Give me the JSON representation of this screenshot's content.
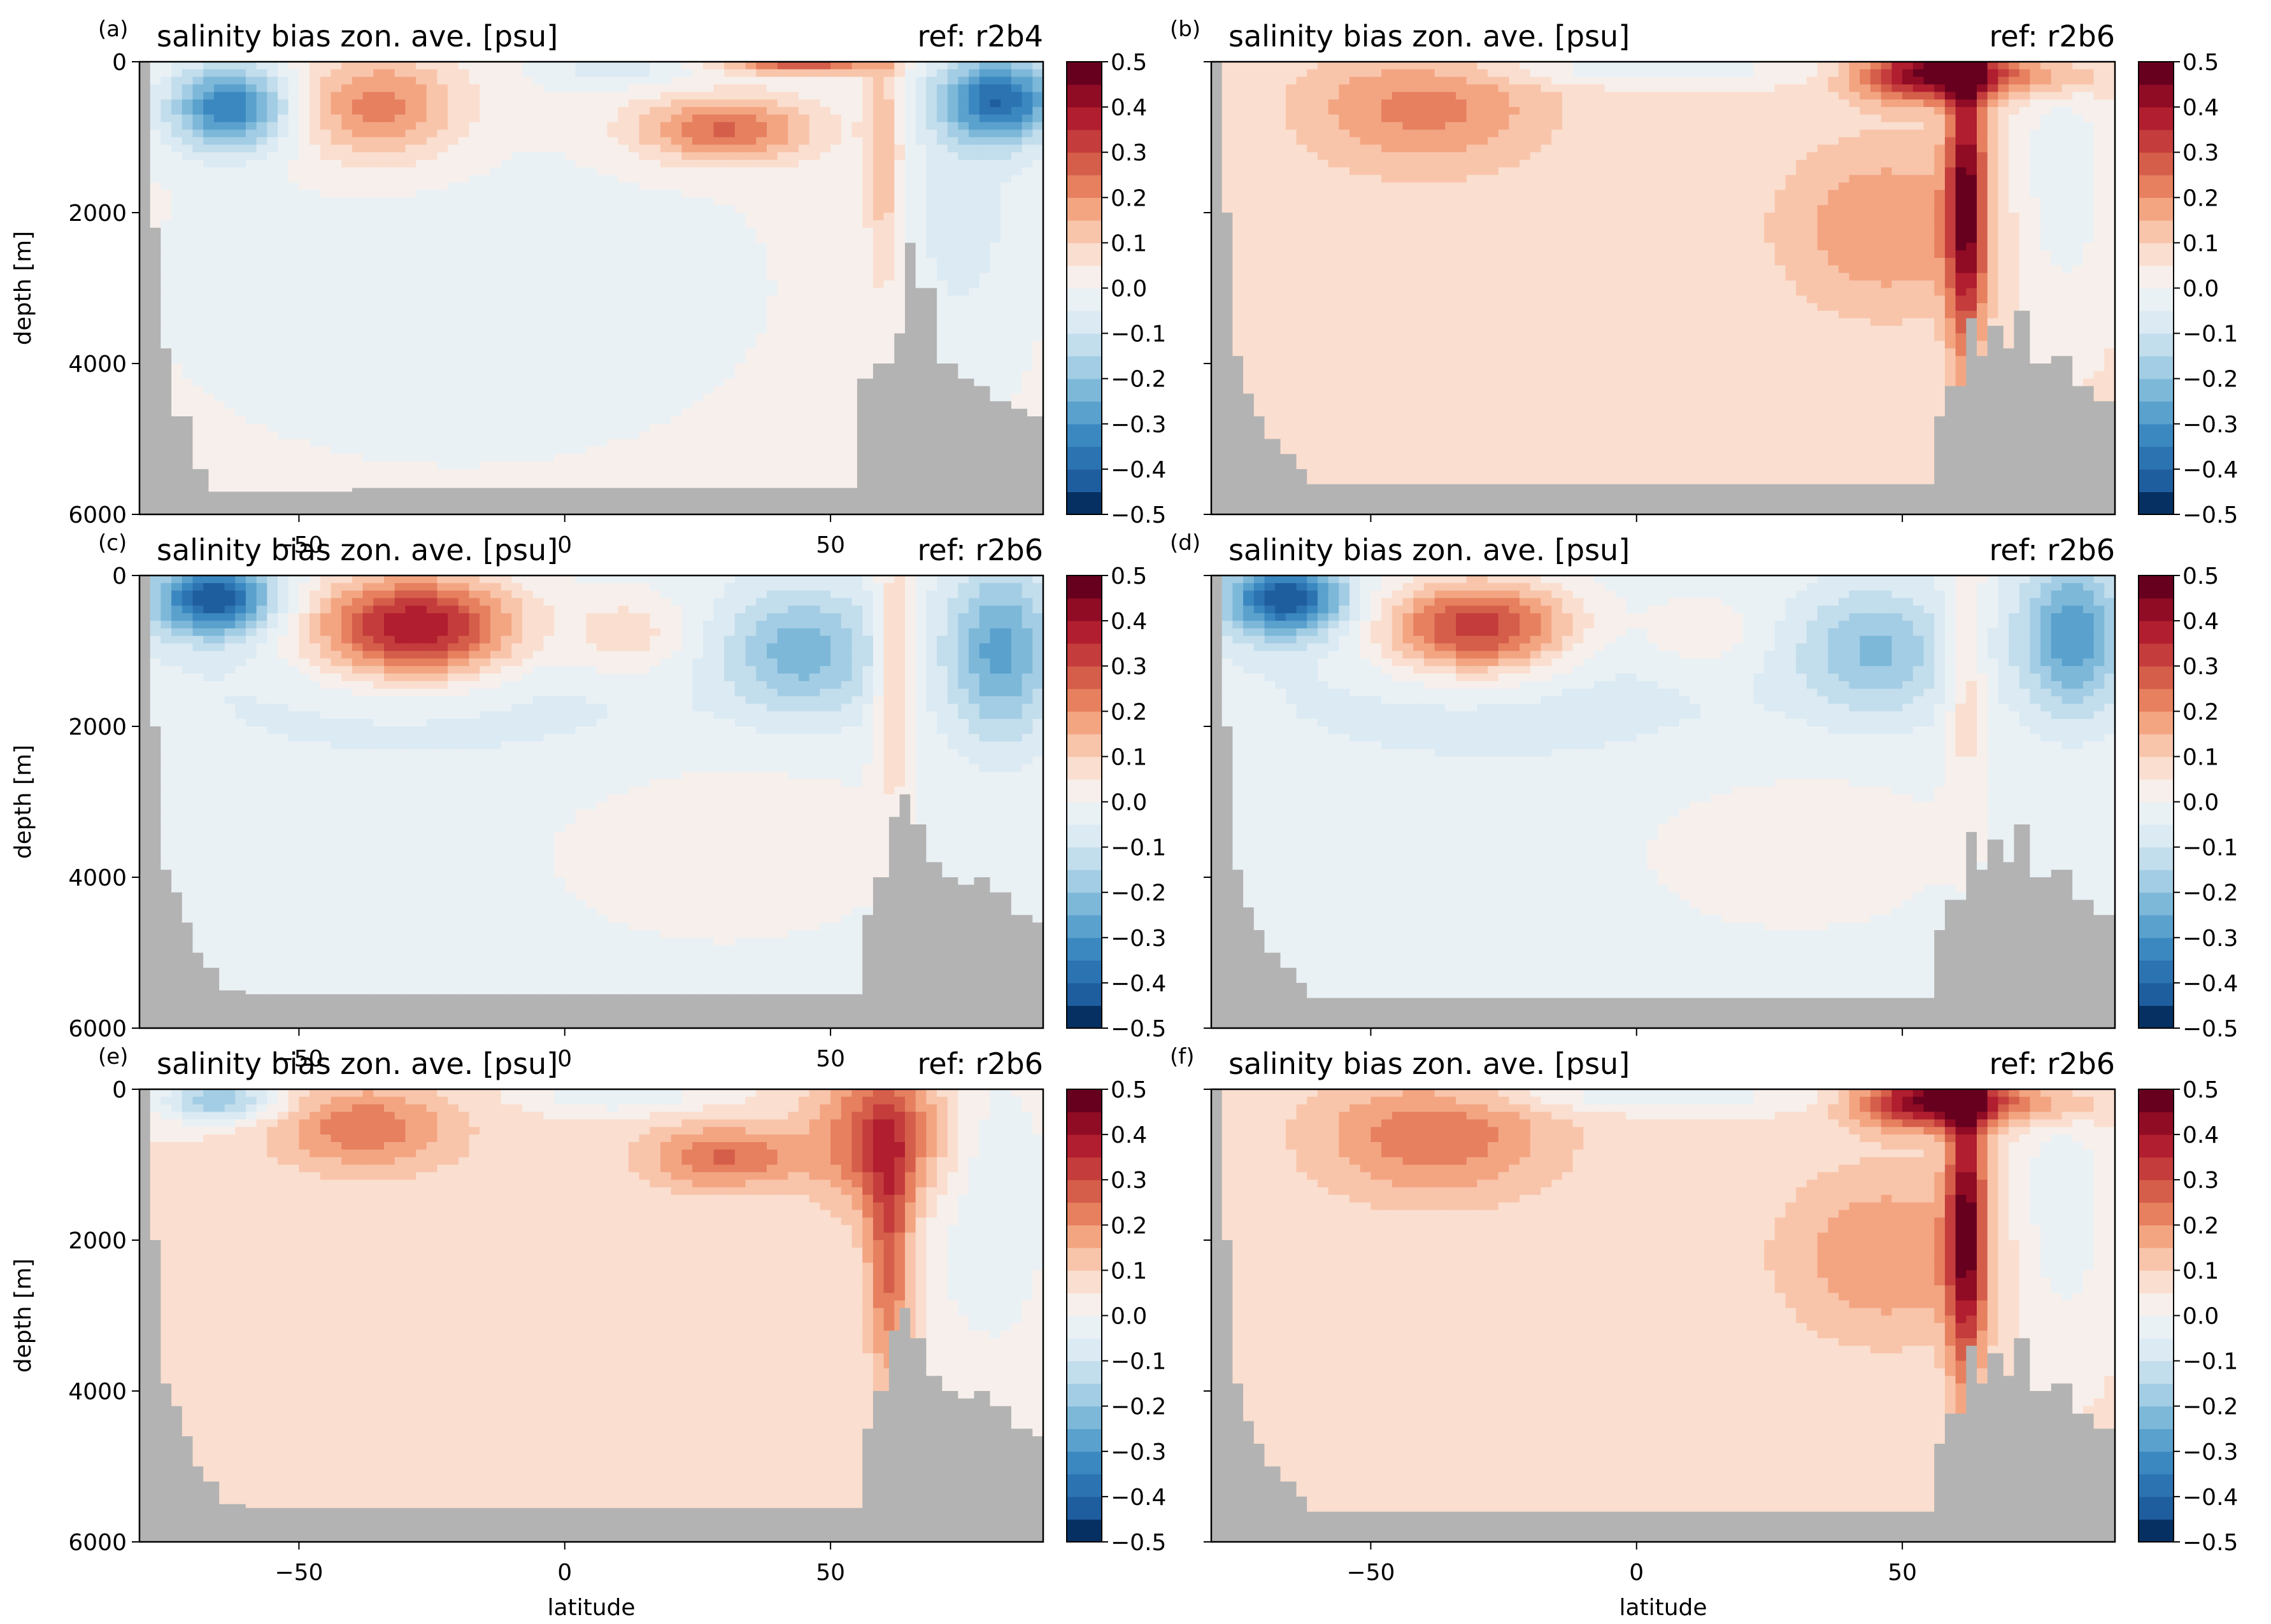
{
  "colors": {
    "land": "#b3b3b3",
    "palette_neg": [
      "#053061",
      "#1f5e9e",
      "#2c73b2",
      "#3b88c1",
      "#5aa1cd",
      "#7db8d9",
      "#a3cde4",
      "#c2ddec",
      "#dbeaf3",
      "#eaf1f5"
    ],
    "palette_pos": [
      "#f7efeb",
      "#fadecf",
      "#f8c5ab",
      "#f3a582",
      "#e6805f",
      "#d55e4a",
      "#c43c3c",
      "#b11e2f",
      "#900c24",
      "#67001f"
    ]
  },
  "chart_data": [
    {
      "type": "heatmap",
      "panel": "(a)",
      "title": "salinity bias zon. ave. [psu]",
      "ref": "ref: r2b4",
      "xlabel": "",
      "ylabel": "depth [m]",
      "xlim": [
        -80,
        90
      ],
      "ylim": [
        6000,
        0
      ],
      "xticks": [
        "−50",
        "0",
        "50"
      ],
      "yticks": [
        "0",
        "2000",
        "4000",
        "6000"
      ],
      "colorbar": {
        "vmin": -0.5,
        "vmax": 0.5,
        "ticks": [
          "0.5",
          "0.4",
          "0.3",
          "0.2",
          "0.1",
          "0.0",
          "−0.1",
          "−0.2",
          "−0.3",
          "−0.4",
          "−0.5"
        ]
      },
      "background": 0.02,
      "features": [
        {
          "lat": -63,
          "depth": 600,
          "slat": 8,
          "sdep": 400,
          "amp": -0.36
        },
        {
          "lat": -35,
          "depth": 600,
          "slat": 11,
          "sdep": 500,
          "amp": 0.22
        },
        {
          "lat": 10,
          "depth": 100,
          "slat": 10,
          "sdep": 150,
          "amp": -0.08
        },
        {
          "lat": 30,
          "depth": 900,
          "slat": 12,
          "sdep": 300,
          "amp": 0.25
        },
        {
          "lat": 60,
          "depth": 1300,
          "slat": 2.5,
          "sdep": 1300,
          "amp": 0.15
        },
        {
          "lat": 82,
          "depth": 500,
          "slat": 8,
          "sdep": 400,
          "amp": -0.38
        },
        {
          "lat": 45,
          "depth": 50,
          "slat": 10,
          "sdep": 80,
          "amp": 0.28
        },
        {
          "lat": 75,
          "depth": 2000,
          "slat": 10,
          "sdep": 1600,
          "amp": -0.08
        },
        {
          "lat": -20,
          "depth": 3000,
          "slat": 50,
          "sdep": 2000,
          "amp": -0.04
        }
      ],
      "bathymetry": [
        [
          -80,
          0
        ],
        [
          -78,
          2200
        ],
        [
          -76,
          3800
        ],
        [
          -74,
          4700
        ],
        [
          -72,
          4700
        ],
        [
          -70,
          5400
        ],
        [
          -67,
          5700
        ],
        [
          -40,
          5650
        ],
        [
          0,
          5650
        ],
        [
          53,
          5650
        ],
        [
          55,
          4200
        ],
        [
          58,
          4000
        ],
        [
          62,
          3600
        ],
        [
          64,
          2400
        ],
        [
          66,
          3000
        ],
        [
          70,
          4000
        ],
        [
          74,
          4200
        ],
        [
          77,
          4300
        ],
        [
          80,
          4500
        ],
        [
          84,
          4600
        ],
        [
          87,
          4700
        ],
        [
          90,
          4700
        ]
      ]
    },
    {
      "type": "heatmap",
      "panel": "(b)",
      "title": "salinity bias zon. ave. [psu]",
      "ref": "ref: r2b6",
      "xlabel": "",
      "ylabel": "",
      "xlim": [
        -80,
        90
      ],
      "ylim": [
        6000,
        0
      ],
      "xticks": [],
      "yticks": [],
      "colorbar": {
        "vmin": -0.5,
        "vmax": 0.5,
        "ticks": [
          "0.5",
          "0.4",
          "0.3",
          "0.2",
          "0.1",
          "0.0",
          "−0.1",
          "−0.2",
          "−0.3",
          "−0.4",
          "−0.5"
        ]
      },
      "background": 0.06,
      "features": [
        {
          "lat": -40,
          "depth": 600,
          "slat": 16,
          "sdep": 600,
          "amp": 0.16
        },
        {
          "lat": 0,
          "depth": 100,
          "slat": 25,
          "sdep": 150,
          "amp": -0.1
        },
        {
          "lat": 57,
          "depth": 150,
          "slat": 10,
          "sdep": 250,
          "amp": 0.45
        },
        {
          "lat": 62,
          "depth": 1800,
          "slat": 2.5,
          "sdep": 1500,
          "amp": 0.38
        },
        {
          "lat": 47,
          "depth": 2200,
          "slat": 14,
          "sdep": 800,
          "amp": 0.14
        },
        {
          "lat": 80,
          "depth": 1600,
          "slat": 7,
          "sdep": 1300,
          "amp": -0.1
        },
        {
          "lat": 80,
          "depth": 200,
          "slat": 8,
          "sdep": 200,
          "amp": 0.1
        }
      ],
      "bathymetry": [
        [
          -80,
          0
        ],
        [
          -78,
          2000
        ],
        [
          -76,
          3900
        ],
        [
          -74,
          4400
        ],
        [
          -72,
          4700
        ],
        [
          -70,
          5000
        ],
        [
          -67,
          5200
        ],
        [
          -64,
          5400
        ],
        [
          -62,
          5600
        ],
        [
          -40,
          5600
        ],
        [
          0,
          5600
        ],
        [
          54,
          5600
        ],
        [
          56,
          4700
        ],
        [
          58,
          4300
        ],
        [
          62,
          3400
        ],
        [
          64,
          3900
        ],
        [
          66,
          3500
        ],
        [
          69,
          3800
        ],
        [
          71,
          3300
        ],
        [
          74,
          4000
        ],
        [
          78,
          3900
        ],
        [
          82,
          4300
        ],
        [
          86,
          4500
        ],
        [
          88,
          4500
        ],
        [
          90,
          4500
        ]
      ]
    },
    {
      "type": "heatmap",
      "panel": "(c)",
      "title": "salinity bias zon. ave. [psu]",
      "ref": "ref: r2b6",
      "xlabel": "",
      "ylabel": "depth [m]",
      "xlim": [
        -80,
        90
      ],
      "ylim": [
        6000,
        0
      ],
      "xticks": [
        "−50",
        "0",
        "50"
      ],
      "yticks": [
        "0",
        "2000",
        "4000",
        "6000"
      ],
      "colorbar": {
        "vmin": -0.5,
        "vmax": 0.5,
        "ticks": [
          "0.5",
          "0.4",
          "0.3",
          "0.2",
          "0.1",
          "0.0",
          "−0.1",
          "−0.2",
          "−0.3",
          "−0.4",
          "−0.5"
        ]
      },
      "background": -0.02,
      "features": [
        {
          "lat": -66,
          "depth": 300,
          "slat": 8,
          "sdep": 350,
          "amp": -0.42
        },
        {
          "lat": -28,
          "depth": 700,
          "slat": 14,
          "sdep": 500,
          "amp": 0.45
        },
        {
          "lat": 12,
          "depth": 800,
          "slat": 8,
          "sdep": 400,
          "amp": 0.12
        },
        {
          "lat": 45,
          "depth": 1000,
          "slat": 10,
          "sdep": 600,
          "amp": -0.2
        },
        {
          "lat": 62,
          "depth": 1200,
          "slat": 2.5,
          "sdep": 1200,
          "amp": 0.15
        },
        {
          "lat": 82,
          "depth": 1000,
          "slat": 7,
          "sdep": 800,
          "amp": -0.25
        },
        {
          "lat": -20,
          "depth": 1500,
          "slat": 40,
          "sdep": 800,
          "amp": -0.06
        },
        {
          "lat": 30,
          "depth": 3500,
          "slat": 25,
          "sdep": 1000,
          "amp": 0.05
        }
      ],
      "bathymetry": [
        [
          -80,
          0
        ],
        [
          -78,
          2000
        ],
        [
          -76,
          3900
        ],
        [
          -74,
          4200
        ],
        [
          -72,
          4600
        ],
        [
          -70,
          5000
        ],
        [
          -68,
          5200
        ],
        [
          -65,
          5500
        ],
        [
          -60,
          5550
        ],
        [
          0,
          5550
        ],
        [
          54,
          5550
        ],
        [
          56,
          4500
        ],
        [
          58,
          4000
        ],
        [
          61,
          3200
        ],
        [
          63,
          2900
        ],
        [
          65,
          3300
        ],
        [
          68,
          3800
        ],
        [
          71,
          4000
        ],
        [
          74,
          4100
        ],
        [
          77,
          4000
        ],
        [
          80,
          4200
        ],
        [
          84,
          4500
        ],
        [
          88,
          4600
        ],
        [
          90,
          4600
        ]
      ]
    },
    {
      "type": "heatmap",
      "panel": "(d)",
      "title": "salinity bias zon. ave. [psu]",
      "ref": "ref: r2b6",
      "xlabel": "",
      "ylabel": "",
      "xlim": [
        -80,
        90
      ],
      "ylim": [
        6000,
        0
      ],
      "xticks": [],
      "yticks": [],
      "colorbar": {
        "vmin": -0.5,
        "vmax": 0.5,
        "ticks": [
          "0.5",
          "0.4",
          "0.3",
          "0.2",
          "0.1",
          "0.0",
          "−0.1",
          "−0.2",
          "−0.3",
          "−0.4",
          "−0.5"
        ]
      },
      "background": -0.02,
      "features": [
        {
          "lat": -66,
          "depth": 300,
          "slat": 8,
          "sdep": 350,
          "amp": -0.42
        },
        {
          "lat": -30,
          "depth": 700,
          "slat": 13,
          "sdep": 450,
          "amp": 0.38
        },
        {
          "lat": 12,
          "depth": 800,
          "slat": 8,
          "sdep": 400,
          "amp": 0.08
        },
        {
          "lat": 45,
          "depth": 1000,
          "slat": 10,
          "sdep": 600,
          "amp": -0.18
        },
        {
          "lat": 62,
          "depth": 1200,
          "slat": 2.5,
          "sdep": 1200,
          "amp": 0.12
        },
        {
          "lat": 82,
          "depth": 800,
          "slat": 7,
          "sdep": 700,
          "amp": -0.28
        },
        {
          "lat": -20,
          "depth": 1500,
          "slat": 40,
          "sdep": 800,
          "amp": -0.06
        },
        {
          "lat": 30,
          "depth": 3500,
          "slat": 25,
          "sdep": 1000,
          "amp": 0.04
        }
      ],
      "bathymetry": [
        [
          -80,
          0
        ],
        [
          -78,
          2000
        ],
        [
          -76,
          3900
        ],
        [
          -74,
          4400
        ],
        [
          -72,
          4700
        ],
        [
          -70,
          5000
        ],
        [
          -67,
          5200
        ],
        [
          -64,
          5400
        ],
        [
          -62,
          5600
        ],
        [
          -40,
          5600
        ],
        [
          0,
          5600
        ],
        [
          54,
          5600
        ],
        [
          56,
          4700
        ],
        [
          58,
          4300
        ],
        [
          62,
          3400
        ],
        [
          64,
          3900
        ],
        [
          66,
          3500
        ],
        [
          69,
          3800
        ],
        [
          71,
          3300
        ],
        [
          74,
          4000
        ],
        [
          78,
          3900
        ],
        [
          82,
          4300
        ],
        [
          86,
          4500
        ],
        [
          88,
          4500
        ],
        [
          90,
          4500
        ]
      ]
    },
    {
      "type": "heatmap",
      "panel": "(e)",
      "title": "salinity bias zon. ave. [psu]",
      "ref": "ref: r2b6",
      "xlabel": "latitude",
      "ylabel": "depth [m]",
      "xlim": [
        -80,
        90
      ],
      "ylim": [
        6000,
        0
      ],
      "xticks": [
        "−50",
        "0",
        "50"
      ],
      "yticks": [
        "0",
        "2000",
        "4000",
        "6000"
      ],
      "colorbar": {
        "vmin": -0.5,
        "vmax": 0.5,
        "ticks": [
          "0.5",
          "0.4",
          "0.3",
          "0.2",
          "0.1",
          "0.0",
          "−0.1",
          "−0.2",
          "−0.3",
          "−0.4",
          "−0.5"
        ]
      },
      "background": 0.05,
      "features": [
        {
          "lat": -65,
          "depth": 150,
          "slat": 8,
          "sdep": 200,
          "amp": -0.25
        },
        {
          "lat": -38,
          "depth": 500,
          "slat": 12,
          "sdep": 400,
          "amp": 0.18
        },
        {
          "lat": 30,
          "depth": 900,
          "slat": 10,
          "sdep": 300,
          "amp": 0.2
        },
        {
          "lat": 60,
          "depth": 600,
          "slat": 9,
          "sdep": 700,
          "amp": 0.25
        },
        {
          "lat": 61,
          "depth": 2200,
          "slat": 3,
          "sdep": 1200,
          "amp": 0.22
        },
        {
          "lat": 80,
          "depth": 1500,
          "slat": 9,
          "sdep": 1500,
          "amp": -0.1
        },
        {
          "lat": 10,
          "depth": 100,
          "slat": 12,
          "sdep": 150,
          "amp": -0.1
        },
        {
          "lat": -10,
          "depth": 2500,
          "slat": 30,
          "sdep": 1500,
          "amp": 0.03
        }
      ],
      "bathymetry": [
        [
          -80,
          0
        ],
        [
          -78,
          2000
        ],
        [
          -76,
          3900
        ],
        [
          -74,
          4200
        ],
        [
          -72,
          4600
        ],
        [
          -70,
          5000
        ],
        [
          -68,
          5200
        ],
        [
          -65,
          5500
        ],
        [
          -60,
          5550
        ],
        [
          0,
          5550
        ],
        [
          54,
          5550
        ],
        [
          56,
          4500
        ],
        [
          58,
          4000
        ],
        [
          61,
          3200
        ],
        [
          63,
          2900
        ],
        [
          65,
          3300
        ],
        [
          68,
          3800
        ],
        [
          71,
          4000
        ],
        [
          74,
          4100
        ],
        [
          77,
          4000
        ],
        [
          80,
          4200
        ],
        [
          84,
          4500
        ],
        [
          88,
          4600
        ],
        [
          90,
          4600
        ]
      ]
    },
    {
      "type": "heatmap",
      "panel": "(f)",
      "title": "salinity bias zon. ave. [psu]",
      "ref": "ref: r2b6",
      "xlabel": "latitude",
      "ylabel": "",
      "xlim": [
        -80,
        90
      ],
      "ylim": [
        6000,
        0
      ],
      "xticks": [
        "−50",
        "0",
        "50"
      ],
      "yticks": [],
      "colorbar": {
        "vmin": -0.5,
        "vmax": 0.5,
        "ticks": [
          "0.5",
          "0.4",
          "0.3",
          "0.2",
          "0.1",
          "0.0",
          "−0.1",
          "−0.2",
          "−0.3",
          "−0.4",
          "−0.5"
        ]
      },
      "background": 0.06,
      "features": [
        {
          "lat": -38,
          "depth": 600,
          "slat": 16,
          "sdep": 600,
          "amp": 0.18
        },
        {
          "lat": 0,
          "depth": 100,
          "slat": 25,
          "sdep": 150,
          "amp": -0.1
        },
        {
          "lat": 57,
          "depth": 150,
          "slat": 10,
          "sdep": 250,
          "amp": 0.45
        },
        {
          "lat": 62,
          "depth": 1800,
          "slat": 2.5,
          "sdep": 1500,
          "amp": 0.38
        },
        {
          "lat": 47,
          "depth": 2200,
          "slat": 14,
          "sdep": 800,
          "amp": 0.14
        },
        {
          "lat": 80,
          "depth": 1600,
          "slat": 7,
          "sdep": 1300,
          "amp": -0.1
        },
        {
          "lat": 80,
          "depth": 200,
          "slat": 8,
          "sdep": 200,
          "amp": 0.1
        }
      ],
      "bathymetry": [
        [
          -80,
          0
        ],
        [
          -78,
          2000
        ],
        [
          -76,
          3900
        ],
        [
          -74,
          4400
        ],
        [
          -72,
          4700
        ],
        [
          -70,
          5000
        ],
        [
          -67,
          5200
        ],
        [
          -64,
          5400
        ],
        [
          -62,
          5600
        ],
        [
          -40,
          5600
        ],
        [
          0,
          5600
        ],
        [
          54,
          5600
        ],
        [
          56,
          4700
        ],
        [
          58,
          4300
        ],
        [
          62,
          3400
        ],
        [
          64,
          3900
        ],
        [
          66,
          3500
        ],
        [
          69,
          3800
        ],
        [
          71,
          3300
        ],
        [
          74,
          4000
        ],
        [
          78,
          3900
        ],
        [
          82,
          4300
        ],
        [
          86,
          4500
        ],
        [
          88,
          4500
        ],
        [
          90,
          4500
        ]
      ]
    }
  ]
}
